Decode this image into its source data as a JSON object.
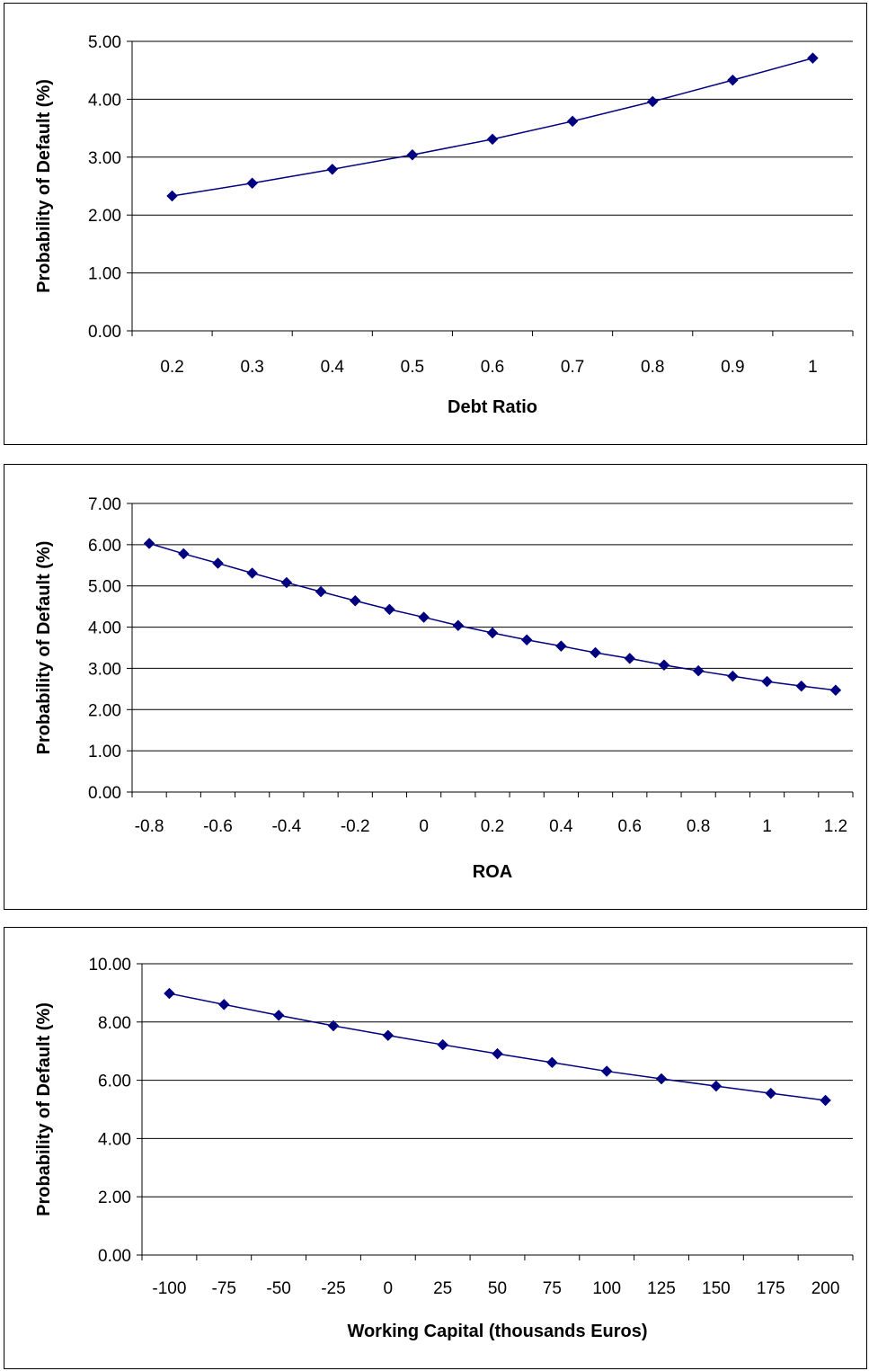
{
  "colors": {
    "series": "#000080",
    "grid": "#000000",
    "axis": "#000000"
  },
  "chart_data": [
    {
      "type": "line",
      "xlabel": "Debt Ratio",
      "ylabel": "Probability of Default (%)",
      "categories": [
        "0.2",
        "0.3",
        "0.4",
        "0.5",
        "0.6",
        "0.7",
        "0.8",
        "0.9",
        "1"
      ],
      "y_ticks": [
        "0.00",
        "1.00",
        "2.00",
        "3.00",
        "4.00",
        "5.00"
      ],
      "ylim": [
        0,
        5
      ],
      "grid": true,
      "series": [
        {
          "values": [
            2.33,
            2.55,
            2.79,
            3.04,
            3.31,
            3.62,
            3.96,
            4.33,
            4.71
          ]
        }
      ]
    },
    {
      "type": "line",
      "xlabel": "ROA",
      "ylabel": "Probability of Default (%)",
      "categories": [
        "-0.8",
        "-0.7",
        "-0.6",
        "-0.5",
        "-0.4",
        "-0.3",
        "-0.2",
        "-0.1",
        "0",
        "0.1",
        "0.2",
        "0.3",
        "0.4",
        "0.5",
        "0.6",
        "0.7",
        "0.8",
        "0.9",
        "1",
        "1.1",
        "1.2"
      ],
      "x_tick_labels": [
        "-0.8",
        "-0.6",
        "-0.4",
        "-0.2",
        "0",
        "0.2",
        "0.4",
        "0.6",
        "0.8",
        "1",
        "1.2"
      ],
      "y_ticks": [
        "0.00",
        "1.00",
        "2.00",
        "3.00",
        "4.00",
        "5.00",
        "6.00",
        "7.00"
      ],
      "ylim": [
        0,
        7
      ],
      "grid": true,
      "series": [
        {
          "values": [
            6.03,
            5.78,
            5.55,
            5.31,
            5.08,
            4.86,
            4.64,
            4.43,
            4.24,
            4.04,
            3.86,
            3.69,
            3.54,
            3.38,
            3.24,
            3.08,
            2.94,
            2.81,
            2.68,
            2.57,
            2.47
          ]
        }
      ]
    },
    {
      "type": "line",
      "xlabel": "Working Capital (thousands Euros)",
      "ylabel": "Probability of Default (%)",
      "categories": [
        "-100",
        "-75",
        "-50",
        "-25",
        "0",
        "25",
        "50",
        "75",
        "100",
        "125",
        "150",
        "175",
        "200"
      ],
      "y_ticks": [
        "0.00",
        "2.00",
        "4.00",
        "6.00",
        "8.00",
        "10.00"
      ],
      "ylim": [
        0,
        10
      ],
      "grid": true,
      "series": [
        {
          "values": [
            8.98,
            8.6,
            8.23,
            7.87,
            7.54,
            7.22,
            6.91,
            6.61,
            6.31,
            6.05,
            5.8,
            5.55,
            5.31
          ]
        }
      ]
    }
  ]
}
